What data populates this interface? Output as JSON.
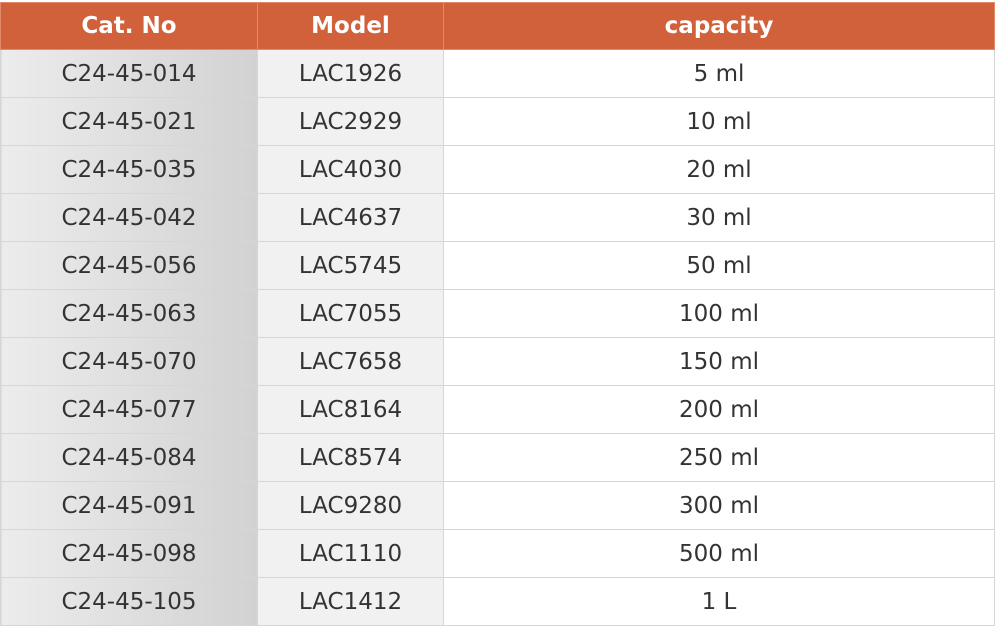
{
  "table": {
    "header": [
      "Cat. No",
      "Model",
      "capacity"
    ],
    "rows": [
      [
        "C24-45-014",
        "LAC1926",
        "5 ml"
      ],
      [
        "C24-45-021",
        "LAC2929",
        "10 ml"
      ],
      [
        "C24-45-035",
        "LAC4030",
        "20 ml"
      ],
      [
        "C24-45-042",
        "LAC4637",
        "30 ml"
      ],
      [
        "C24-45-056",
        "LAC5745",
        "50 ml"
      ],
      [
        "C24-45-063",
        "LAC7055",
        "100 ml"
      ],
      [
        "C24-45-070",
        "LAC7658",
        "150 ml"
      ],
      [
        "C24-45-077",
        "LAC8164",
        "200 ml"
      ],
      [
        "C24-45-084",
        "LAC8574",
        "250 ml"
      ],
      [
        "C24-45-091",
        "LAC9280",
        "300 ml"
      ],
      [
        "C24-45-098",
        "LAC1110",
        "500 ml"
      ],
      [
        "C24-45-105",
        "LAC1412",
        "1 L"
      ]
    ]
  }
}
